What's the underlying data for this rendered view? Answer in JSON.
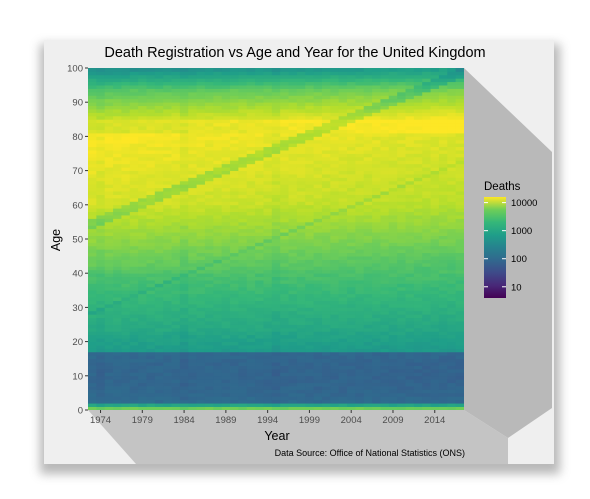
{
  "chart_data": {
    "type": "heatmap",
    "title": "Death Registration vs Age and Year for the United Kingdom",
    "xlabel": "Year",
    "ylabel": "Age",
    "caption": "Data Source: Office of National Statistics (ONS)",
    "x_range": [
      1973,
      2018
    ],
    "y_range": [
      0,
      100
    ],
    "x_ticks": [
      1974,
      1979,
      1984,
      1989,
      1994,
      1999,
      2004,
      2009,
      2014
    ],
    "y_ticks": [
      0,
      10,
      20,
      30,
      40,
      50,
      60,
      70,
      80,
      90,
      100
    ],
    "color_scale": "viridis",
    "log_scale": true,
    "legend": {
      "title": "Deaths",
      "placement": "right",
      "ticks": [
        10,
        100,
        1000,
        10000
      ]
    },
    "colors": {
      "panel_background": "#efefef",
      "viridis_low": "#440154",
      "viridis_high": "#fde725"
    }
  }
}
